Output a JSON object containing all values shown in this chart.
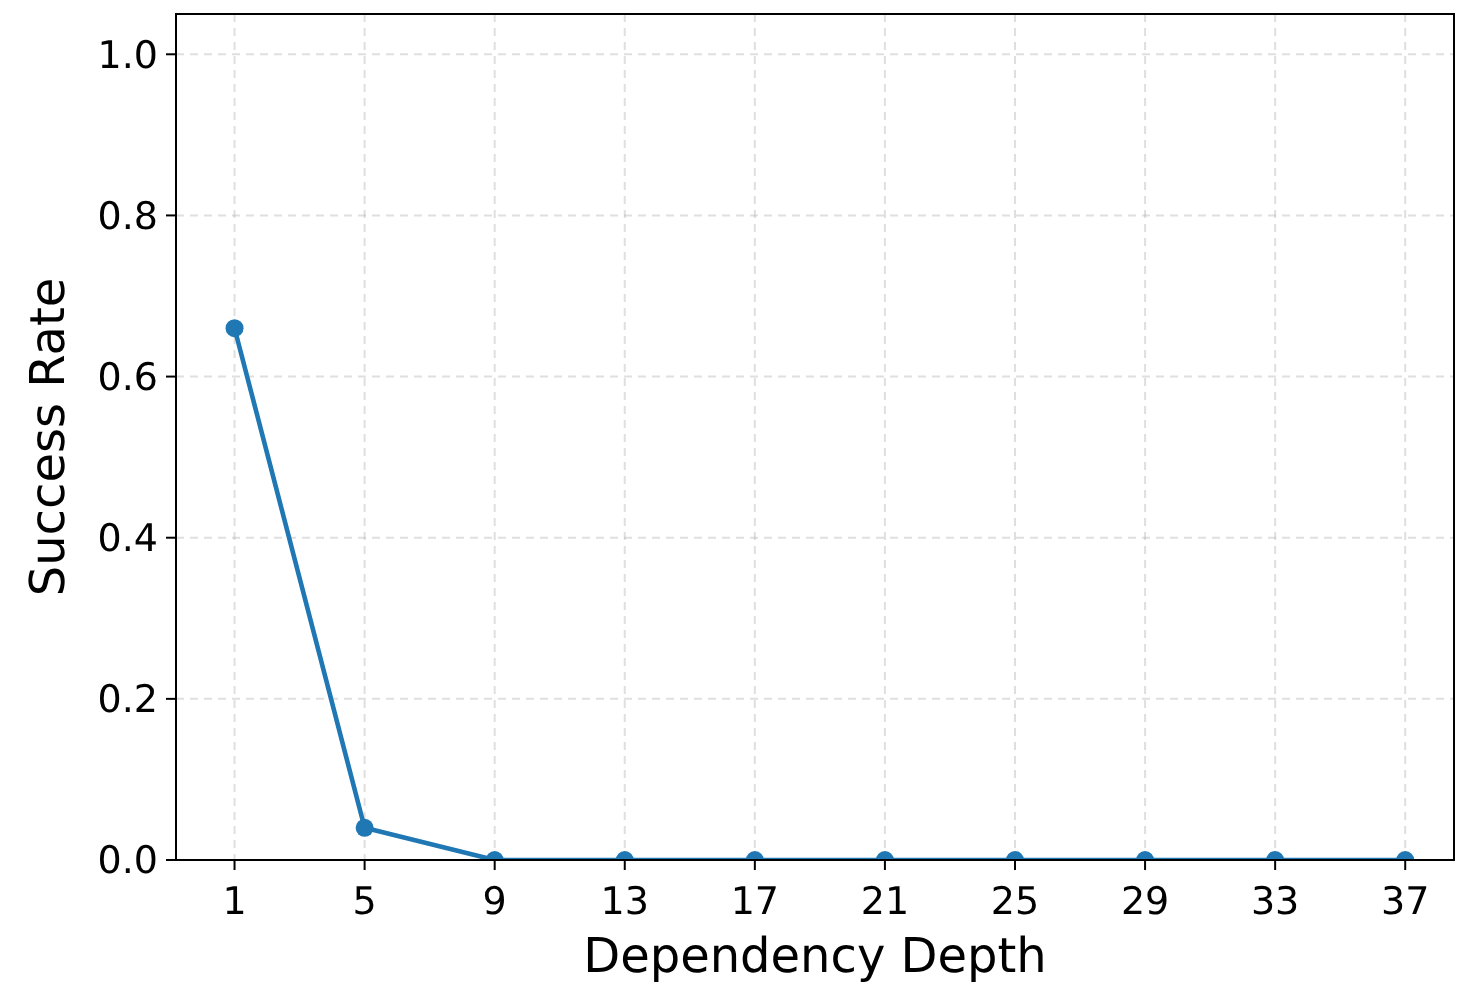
{
  "chart_data": {
    "type": "line",
    "xlabel": "Dependency Depth",
    "ylabel": "Success Rate",
    "x": [
      1,
      5,
      9,
      13,
      17,
      21,
      25,
      29,
      33,
      37
    ],
    "series": [
      {
        "color": "#1f77b4",
        "values": [
          0.66,
          0.04,
          0,
          0,
          0,
          0,
          0,
          0,
          0,
          0
        ]
      }
    ],
    "xlim": [
      -0.8,
      38.5
    ],
    "xticks": [
      1,
      5,
      9,
      13,
      17,
      21,
      25,
      29,
      33,
      37
    ],
    "ylim": [
      0,
      1.05
    ],
    "yticks": [
      {
        "value": 0,
        "label": "0.0"
      },
      {
        "value": 0.2,
        "label": "0.2"
      },
      {
        "value": 0.4,
        "label": "0.4"
      },
      {
        "value": 0.6,
        "label": "0.6"
      },
      {
        "value": 0.8,
        "label": "0.8"
      },
      {
        "value": 1,
        "label": "1.0"
      }
    ],
    "grid": true,
    "marker": "circle",
    "line_style": "solid"
  }
}
